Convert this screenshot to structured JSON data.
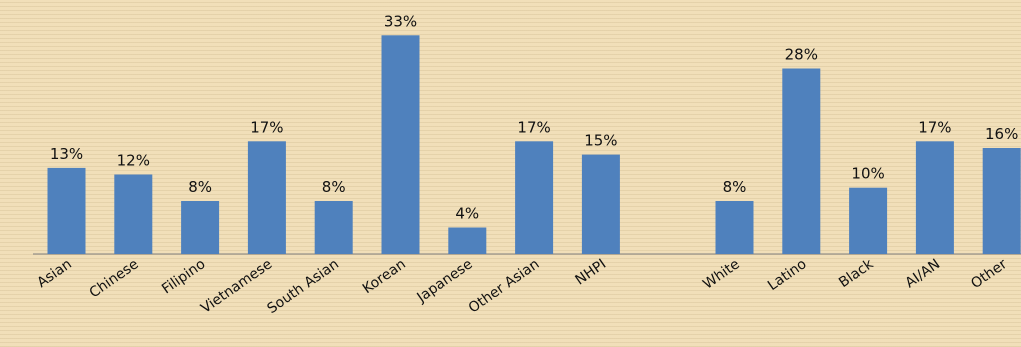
{
  "chart_data": {
    "type": "bar",
    "categories": [
      "Asian",
      "Chinese",
      "Filipino",
      "Vietnamese",
      "South Asian",
      "Korean",
      "Japanese",
      "Other Asian",
      "NHPI",
      "",
      "White",
      "Latino",
      "Black",
      "AI/AN",
      "Other"
    ],
    "values": [
      13,
      12,
      8,
      17,
      8,
      33,
      4,
      17,
      15,
      null,
      8,
      28,
      10,
      17,
      16
    ],
    "data_labels": [
      "13%",
      "12%",
      "8%",
      "17%",
      "8%",
      "33%",
      "4%",
      "17%",
      "15%",
      "",
      "8%",
      "28%",
      "10%",
      "17%",
      "16%"
    ],
    "unit": "%",
    "ylim": [
      0,
      35
    ],
    "grid": false,
    "legend": "none",
    "title": "",
    "xlabel": "",
    "ylabel": "",
    "colors": {
      "bar": "#4f81bd",
      "background": "#f1dfb9"
    }
  }
}
